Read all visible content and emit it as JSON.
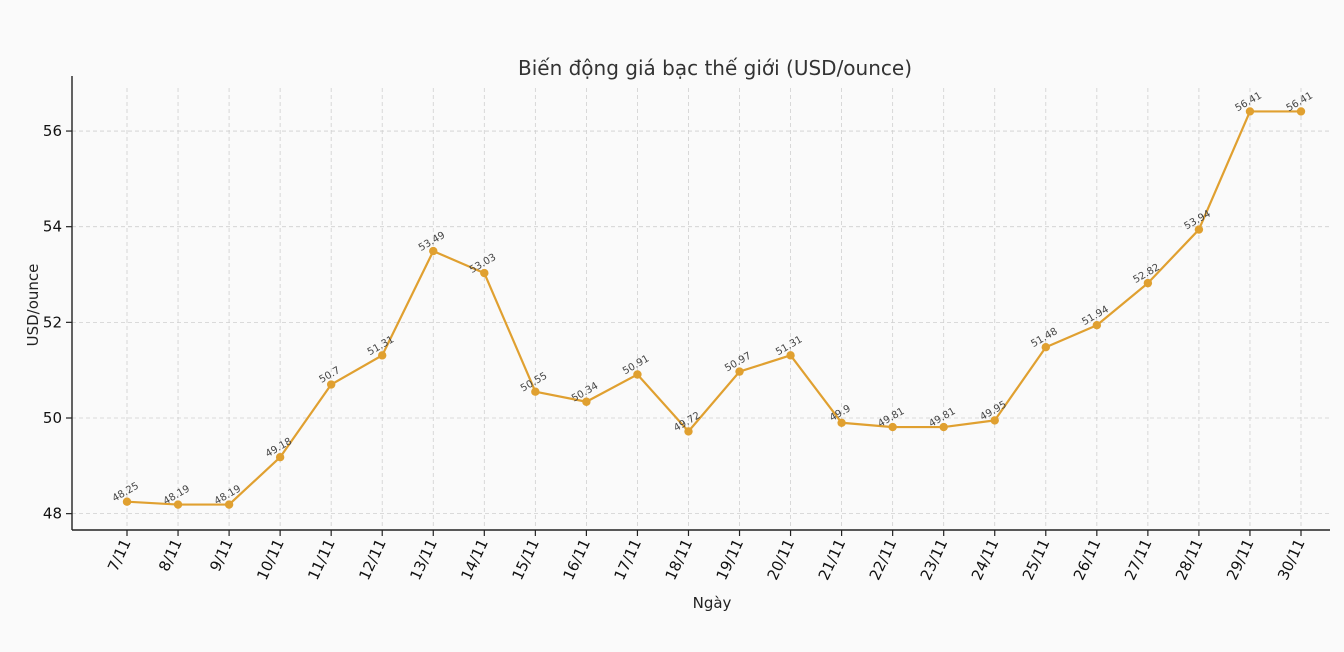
{
  "chart_data": {
    "type": "line",
    "title": "Biến động giá bạc thế giới (USD/ounce)",
    "xlabel": "Ngày",
    "ylabel": "USD/ounce",
    "categories": [
      "7/11",
      "8/11",
      "9/11",
      "10/11",
      "11/11",
      "12/11",
      "13/11",
      "14/11",
      "15/11",
      "16/11",
      "17/11",
      "18/11",
      "19/11",
      "20/11",
      "21/11",
      "22/11",
      "23/11",
      "24/11",
      "25/11",
      "26/11",
      "27/11",
      "28/11",
      "29/11",
      "30/11"
    ],
    "series": [
      {
        "name": "",
        "color": "#e0a030",
        "values": [
          48.25,
          48.19,
          48.19,
          49.18,
          50.7,
          51.31,
          53.49,
          53.03,
          50.55,
          50.34,
          50.91,
          49.72,
          50.97,
          51.31,
          49.9,
          49.81,
          49.81,
          49.95,
          51.48,
          51.94,
          52.82,
          53.94,
          56.41,
          56.41
        ]
      }
    ],
    "yticks": [
      48,
      50,
      52,
      54,
      56
    ],
    "ylim": [
      47.7,
      56.9
    ],
    "grid": true,
    "legend": "none"
  }
}
